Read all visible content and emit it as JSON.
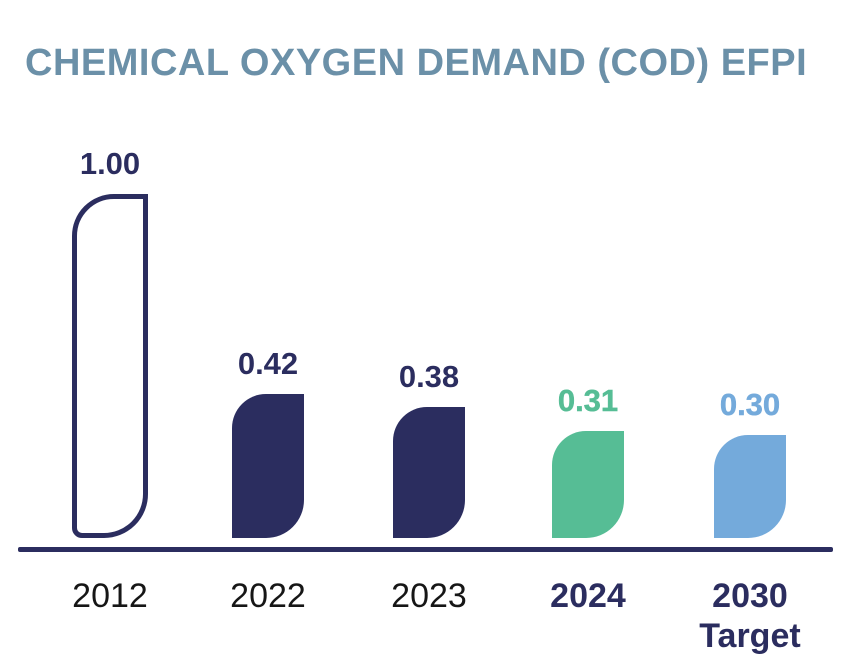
{
  "title": "CHEMICAL OXYGEN DEMAND (COD) EFPI",
  "colors": {
    "navy": "#2b2d5f",
    "green": "#56bd95",
    "blue": "#74aadb",
    "title_text": "#6b90a8",
    "axis": "#2b2d5f",
    "year_text": "#161616",
    "background": "#ffffff"
  },
  "chart_data": {
    "type": "bar",
    "title": "CHEMICAL OXYGEN DEMAND (COD) EFPI",
    "categories": [
      "2012",
      "2022",
      "2023",
      "2024",
      "2030 Target"
    ],
    "values": [
      1.0,
      0.42,
      0.38,
      0.31,
      0.3
    ],
    "value_labels": [
      "1.00",
      "0.42",
      "0.38",
      "0.31",
      "0.30"
    ],
    "xlabel": "",
    "ylabel": "",
    "ylim": [
      0,
      1.0
    ],
    "grid": false,
    "legend": "none",
    "value_label_position": "above-bar",
    "bars": [
      {
        "category": "2012",
        "value": 1.0,
        "label": "1.00",
        "variant": "outline",
        "color": "#2b2d5f",
        "label_bold": false,
        "category_bold": false,
        "category_lines": [
          "2012"
        ]
      },
      {
        "category": "2022",
        "value": 0.42,
        "label": "0.42",
        "variant": "filled",
        "color": "#2b2d5f",
        "label_bold": false,
        "category_bold": false,
        "category_lines": [
          "2022"
        ]
      },
      {
        "category": "2023",
        "value": 0.38,
        "label": "0.38",
        "variant": "filled",
        "color": "#2b2d5f",
        "label_bold": false,
        "category_bold": false,
        "category_lines": [
          "2023"
        ]
      },
      {
        "category": "2024",
        "value": 0.31,
        "label": "0.31",
        "variant": "filled",
        "color": "#56bd95",
        "label_bold": true,
        "category_bold": true,
        "category_lines": [
          "2024"
        ]
      },
      {
        "category": "2030 Target",
        "value": 0.3,
        "label": "0.30",
        "variant": "filled",
        "color": "#74aadb",
        "label_bold": true,
        "category_bold": true,
        "category_lines": [
          "2030",
          "Target"
        ]
      }
    ]
  }
}
